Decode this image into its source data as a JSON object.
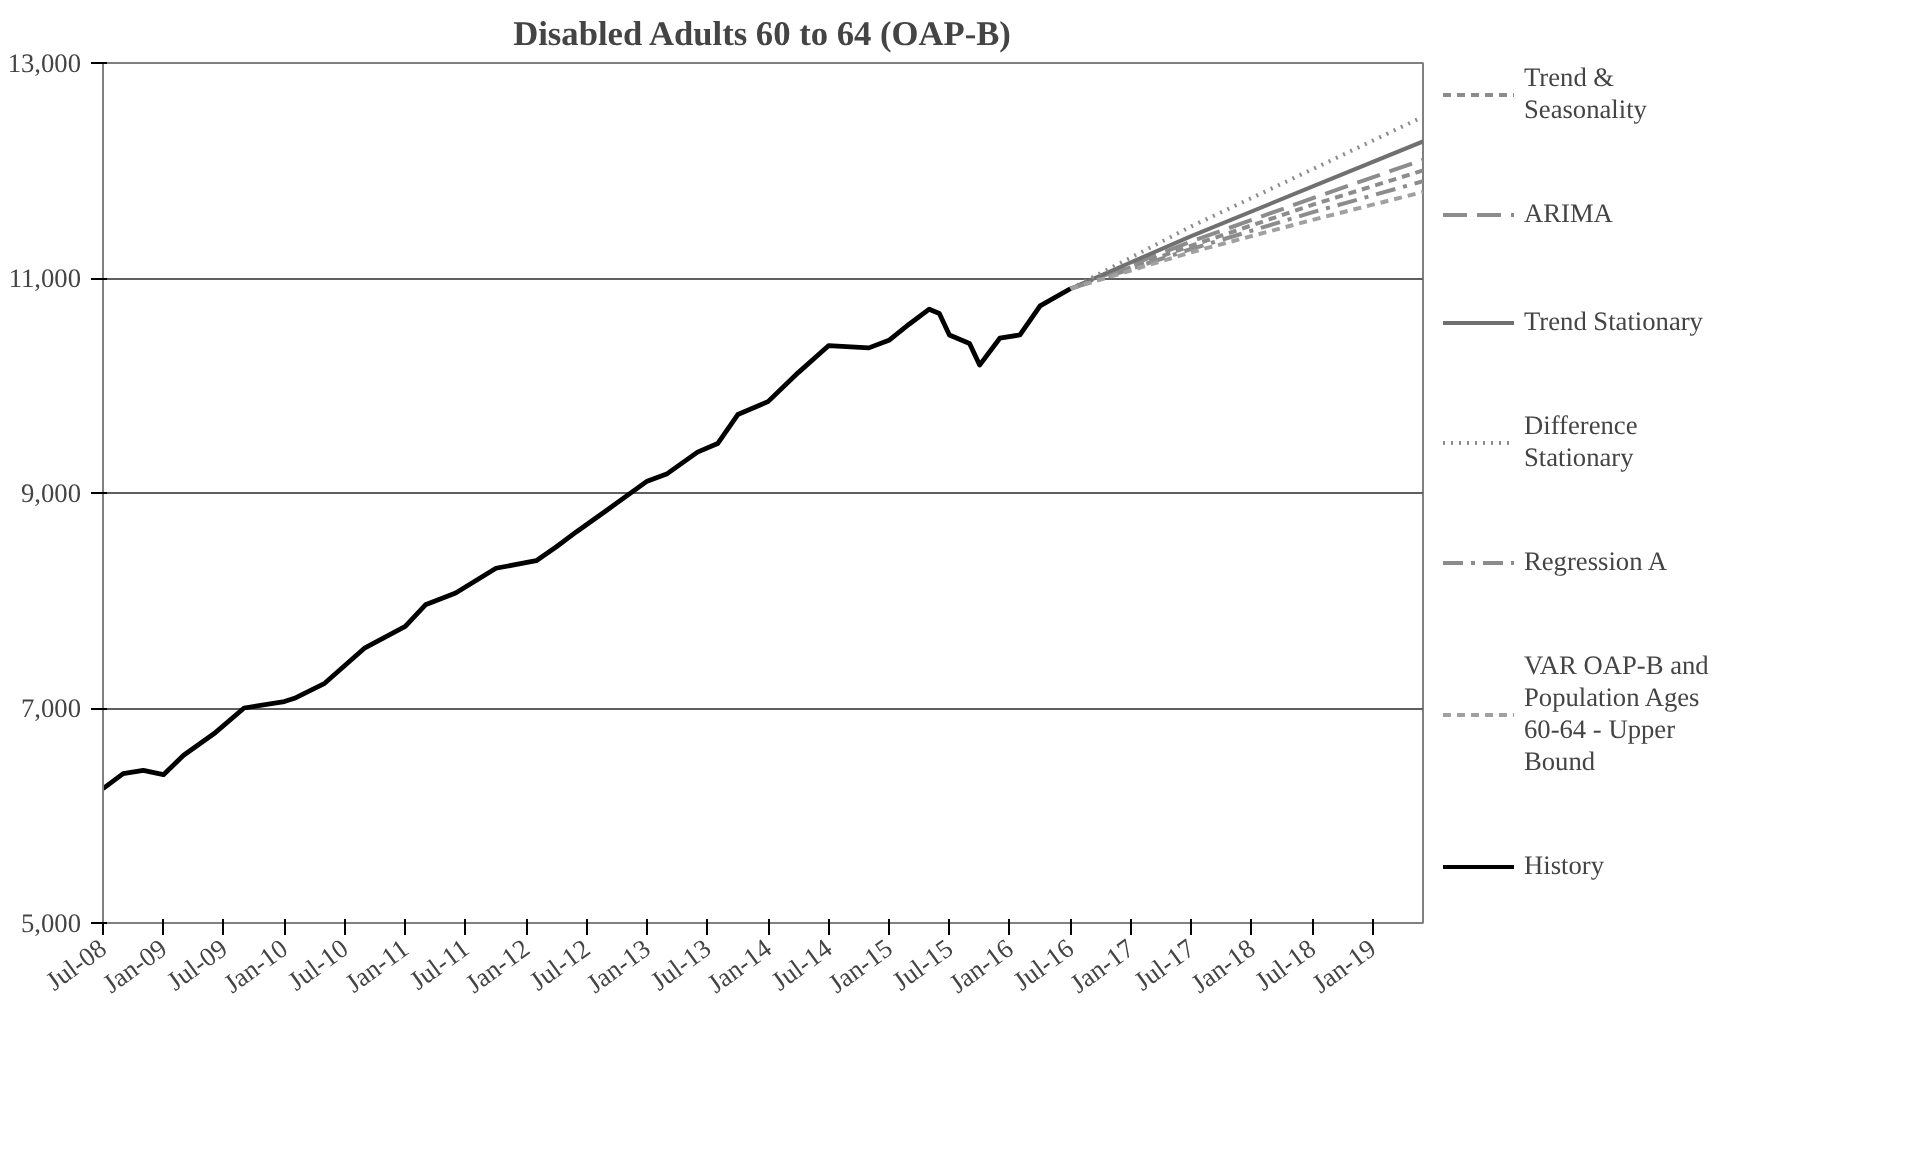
{
  "chart_data": {
    "type": "line",
    "title": "Disabled Adults 60 to 64 (OAP-B)",
    "xlim": [
      "2008-07",
      "2019-06"
    ],
    "ylim": [
      5000,
      13000
    ],
    "yticks": [
      {
        "value": 5000,
        "label": "5,000"
      },
      {
        "value": 7000,
        "label": "7,000"
      },
      {
        "value": 9000,
        "label": "9,000"
      },
      {
        "value": 11000,
        "label": "11,000"
      },
      {
        "value": 13000,
        "label": "13,000"
      }
    ],
    "xticks": [
      {
        "value": "2008-07",
        "label": "Jul-08"
      },
      {
        "value": "2009-01",
        "label": "Jan-09"
      },
      {
        "value": "2009-07",
        "label": "Jul-09"
      },
      {
        "value": "2010-01",
        "label": "Jan-10"
      },
      {
        "value": "2010-07",
        "label": "Jul-10"
      },
      {
        "value": "2011-01",
        "label": "Jan-11"
      },
      {
        "value": "2011-07",
        "label": "Jul-11"
      },
      {
        "value": "2012-01",
        "label": "Jan-12"
      },
      {
        "value": "2012-07",
        "label": "Jul-12"
      },
      {
        "value": "2013-01",
        "label": "Jan-13"
      },
      {
        "value": "2013-07",
        "label": "Jul-13"
      },
      {
        "value": "2014-01",
        "label": "Jan-14"
      },
      {
        "value": "2014-07",
        "label": "Jul-14"
      },
      {
        "value": "2015-01",
        "label": "Jan-15"
      },
      {
        "value": "2015-07",
        "label": "Jul-15"
      },
      {
        "value": "2016-01",
        "label": "Jan-16"
      },
      {
        "value": "2016-07",
        "label": "Jul-16"
      },
      {
        "value": "2017-01",
        "label": "Jan-17"
      },
      {
        "value": "2017-07",
        "label": "Jul-17"
      },
      {
        "value": "2018-01",
        "label": "Jan-18"
      },
      {
        "value": "2018-07",
        "label": "Jul-18"
      },
      {
        "value": "2019-01",
        "label": "Jan-19"
      }
    ],
    "grid": "y",
    "legend": "right",
    "marker": "none",
    "series": [
      {
        "name": "Trend & Seasonality",
        "color": "#8c8c8c",
        "line_style": "dashed",
        "x": [
          "2016-07",
          "2017-07",
          "2018-07",
          "2019-06"
        ],
        "values": [
          10900,
          11300,
          11680,
          12000
        ]
      },
      {
        "name": "ARIMA",
        "color": "#8c8c8c",
        "line_style": "longdash",
        "x": [
          "2016-07",
          "2017-07",
          "2018-07",
          "2019-06"
        ],
        "values": [
          10900,
          11340,
          11740,
          12100
        ]
      },
      {
        "name": "Trend Stationary",
        "color": "#707070",
        "line_style": "solid",
        "x": [
          "2016-07",
          "2017-07",
          "2018-07",
          "2019-06"
        ],
        "values": [
          10900,
          11390,
          11850,
          12270
        ]
      },
      {
        "name": "Difference Stationary",
        "color": "#8c8c8c",
        "line_style": "dotted",
        "x": [
          "2016-07",
          "2017-07",
          "2018-07",
          "2019-06"
        ],
        "values": [
          10900,
          11480,
          12010,
          12500
        ]
      },
      {
        "name": "Regression A",
        "color": "#8c8c8c",
        "line_style": "dashdot",
        "x": [
          "2016-07",
          "2017-07",
          "2018-07",
          "2019-06"
        ],
        "values": [
          10900,
          11270,
          11610,
          11900
        ]
      },
      {
        "name": "VAR OAP-B and Population Ages 60-64 - Upper Bound",
        "color": "#a0a0a0",
        "line_style": "dashed",
        "x": [
          "2016-07",
          "2017-07",
          "2018-07",
          "2019-06"
        ],
        "values": [
          10900,
          11240,
          11540,
          11800
        ]
      },
      {
        "name": "History",
        "color": "#000000",
        "line_style": "solid",
        "x": [
          "2008-07",
          "2008-09",
          "2008-11",
          "2009-01",
          "2009-03",
          "2009-06",
          "2009-09",
          "2010-01",
          "2010-02",
          "2010-05",
          "2010-09",
          "2011-01",
          "2011-03",
          "2011-06",
          "2011-10",
          "2012-02",
          "2012-04",
          "2012-06",
          "2012-09",
          "2013-01",
          "2013-03",
          "2013-06",
          "2013-08",
          "2013-10",
          "2014-01",
          "2014-04",
          "2014-07",
          "2014-11",
          "2015-01",
          "2015-03",
          "2015-05",
          "2015-06",
          "2015-07",
          "2015-09",
          "2015-10",
          "2015-12",
          "2016-02",
          "2016-04",
          "2016-07"
        ],
        "values": [
          6250,
          6390,
          6420,
          6380,
          6560,
          6760,
          7000,
          7060,
          7090,
          7230,
          7560,
          7760,
          7960,
          8070,
          8300,
          8370,
          8500,
          8640,
          8840,
          9110,
          9180,
          9380,
          9460,
          9730,
          9850,
          10120,
          10370,
          10350,
          10420,
          10570,
          10710,
          10670,
          10470,
          10390,
          10190,
          10440,
          10470,
          10740,
          10900
        ]
      }
    ]
  }
}
